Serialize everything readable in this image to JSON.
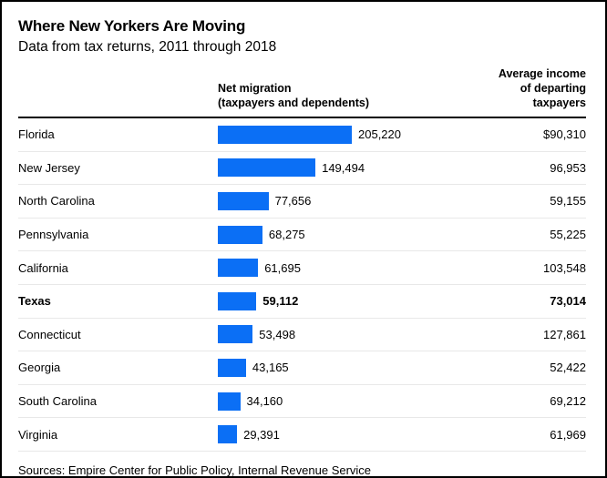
{
  "header": {
    "title": "Where New Yorkers Are Moving",
    "subtitle": "Data from tax returns, 2011 through 2018"
  },
  "columns": {
    "migration": "Net migration\n(taxpayers and dependents)",
    "income": "Average income\nof departing taxpayers"
  },
  "footer": {
    "sources": "Sources: Empire Center for Public Policy, Internal Revenue Service"
  },
  "chart_data": {
    "type": "bar",
    "orientation": "horizontal",
    "title": "Where New Yorkers Are Moving",
    "subtitle": "Data from tax returns, 2011 through 2018",
    "categories": [
      "Florida",
      "New Jersey",
      "North Carolina",
      "Pennsylvania",
      "California",
      "Texas",
      "Connecticut",
      "Georgia",
      "South Carolina",
      "Virginia"
    ],
    "series": [
      {
        "name": "Net migration (taxpayers and dependents)",
        "values": [
          205220,
          149494,
          77656,
          68275,
          61695,
          59112,
          53498,
          43165,
          34160,
          29391
        ],
        "labels": [
          "205,220",
          "149,494",
          "77,656",
          "68,275",
          "61,695",
          "59,112",
          "53,498",
          "43,165",
          "34,160",
          "29,391"
        ]
      },
      {
        "name": "Average income of departing taxpayers",
        "values": [
          90310,
          96953,
          59155,
          55225,
          103548,
          73014,
          127861,
          52422,
          69212,
          61969
        ],
        "labels": [
          "$90,310",
          "96,953",
          "59,155",
          "55,225",
          "103,548",
          "73,014",
          "127,861",
          "52,422",
          "69,212",
          "61,969"
        ]
      }
    ],
    "highlighted_category": "Texas",
    "bar_color": "#0b6ff5",
    "xlim": [
      0,
      205220
    ],
    "grid": false,
    "legend": false
  }
}
